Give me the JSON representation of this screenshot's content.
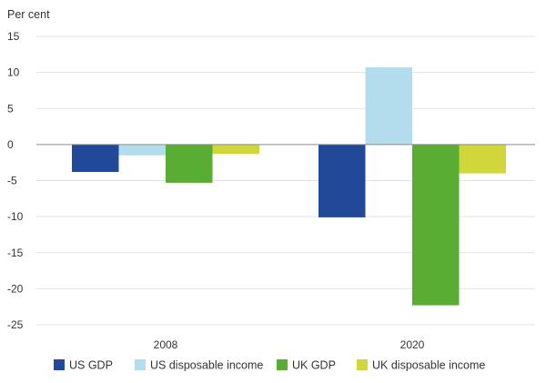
{
  "chart_data": {
    "type": "bar",
    "ylabel": "Per cent",
    "ylim": [
      -25,
      15
    ],
    "yticks": [
      15,
      10,
      5,
      0,
      -5,
      -10,
      -15,
      -20,
      -25
    ],
    "grid": true,
    "legend_position": "bottom",
    "categories": [
      "2008",
      "2020"
    ],
    "series": [
      {
        "name": "US GDP",
        "color": "#22489a",
        "values": [
          -3.8,
          -10.1
        ]
      },
      {
        "name": "US disposable income",
        "color": "#b3dcec",
        "values": [
          -1.5,
          10.7
        ]
      },
      {
        "name": "UK GDP",
        "color": "#58ad32",
        "values": [
          -5.3,
          -22.3
        ]
      },
      {
        "name": "UK disposable income",
        "color": "#d1d63b",
        "values": [
          -1.3,
          -4.0
        ]
      }
    ]
  }
}
